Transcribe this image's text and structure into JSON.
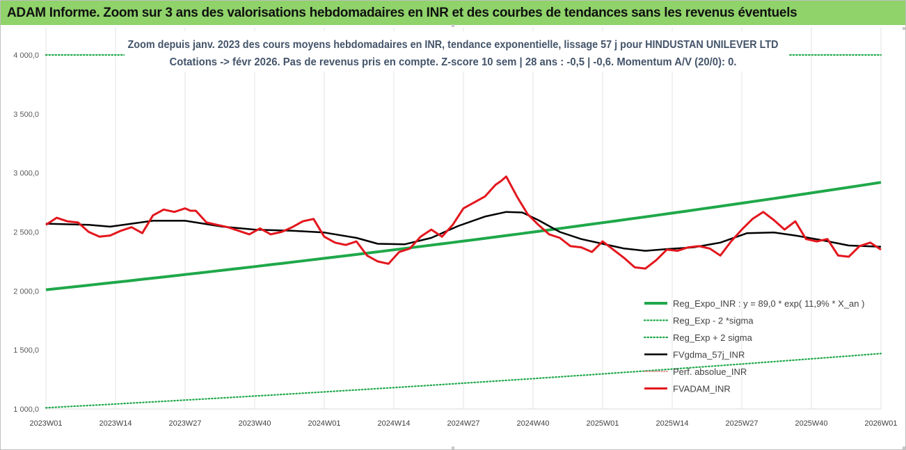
{
  "banner": {
    "title": "ADAM Informe. Zoom sur 3 ans des valorisations hebdomadaires en INR et des courbes de tendances sans les revenus éventuels"
  },
  "chart_data": {
    "type": "line",
    "title": "Zoom depuis janv. 2023 des cours moyens hebdomadaires en INR, tendance exponentielle, lissage 57 j pour HINDUSTAN UNILEVER LTD",
    "subtitle": "Cotations -> févr 2026.  Pas de revenus pris en compte. Z-score 10 sem | 28 ans : -0,5 | -0,6. Momentum A/V (20/0): 0.",
    "xlabel": "",
    "ylabel": "",
    "ylim": [
      1000,
      4000
    ],
    "y_ticks": [
      "1 000,0",
      "1 500,0",
      "2 000,0",
      "2 500,0",
      "3 000,0",
      "3 500,0",
      "4 000,0"
    ],
    "x_ticks": [
      "2023W01",
      "2023W14",
      "2023W27",
      "2023W40",
      "2024W01",
      "2024W14",
      "2024W27",
      "2024W40",
      "2025W01",
      "2025W14",
      "2025W27",
      "2025W40",
      "2026W01"
    ],
    "grid": "vertical",
    "legend_position": "right",
    "colors": {
      "reg_expo": "#1fa84a",
      "band": "#1fa84a",
      "perf": "#e07b7b",
      "fvgdma": "#000000",
      "fvadam": "#e3161d"
    },
    "series": [
      {
        "name": "Reg_Expo_INR : y = 89,0 * exp( 11,9% *  X_an )",
        "key": "reg_expo",
        "x": [
          0,
          156
        ],
        "values": [
          2010,
          2920
        ]
      },
      {
        "name": "Reg_Exp - 2 *sigma",
        "key": "minus2",
        "x": [
          0,
          156
        ],
        "values": [
          1010,
          1470
        ]
      },
      {
        "name": "Reg_Exp + 2 sigma",
        "key": "plus2",
        "x": [
          0,
          156
        ],
        "values": [
          4000,
          4000
        ]
      },
      {
        "name": "FVgdma_57j_INR",
        "key": "fvgdma",
        "x": [
          0,
          8,
          12,
          20,
          26,
          33,
          39,
          46,
          52,
          58,
          62,
          67,
          72,
          77,
          82,
          86,
          89,
          92,
          96,
          100,
          104,
          108,
          112,
          116,
          121,
          126,
          131,
          136,
          140,
          145,
          150,
          156
        ],
        "values": [
          2570,
          2560,
          2545,
          2595,
          2595,
          2545,
          2520,
          2510,
          2495,
          2450,
          2400,
          2395,
          2450,
          2550,
          2630,
          2670,
          2665,
          2600,
          2500,
          2440,
          2400,
          2360,
          2340,
          2355,
          2370,
          2410,
          2490,
          2495,
          2470,
          2430,
          2385,
          2375
        ]
      },
      {
        "name": "Perf. absolue_INR",
        "key": "perf",
        "x": [],
        "values": []
      },
      {
        "name": "FVADAM_INR",
        "key": "fvadam",
        "x": [
          0,
          2,
          4,
          6,
          8,
          10,
          12,
          14,
          16,
          18,
          20,
          22,
          24,
          26,
          27,
          28,
          30,
          32,
          34,
          36,
          38,
          40,
          42,
          44,
          46,
          48,
          50,
          52,
          54,
          56,
          58,
          60,
          62,
          64,
          66,
          68,
          70,
          72,
          74,
          76,
          78,
          80,
          82,
          83,
          84,
          85,
          86,
          88,
          90,
          92,
          94,
          96,
          98,
          100,
          102,
          104,
          106,
          108,
          110,
          112,
          114,
          116,
          118,
          120,
          122,
          124,
          126,
          128,
          130,
          132,
          134,
          136,
          138,
          140,
          142,
          144,
          146,
          148,
          150,
          152,
          154,
          156
        ],
        "values": [
          2560,
          2620,
          2590,
          2580,
          2500,
          2460,
          2470,
          2510,
          2540,
          2490,
          2640,
          2690,
          2670,
          2700,
          2680,
          2680,
          2580,
          2560,
          2540,
          2510,
          2480,
          2530,
          2480,
          2500,
          2540,
          2590,
          2610,
          2460,
          2410,
          2390,
          2420,
          2300,
          2250,
          2230,
          2330,
          2360,
          2460,
          2520,
          2460,
          2560,
          2700,
          2750,
          2800,
          2850,
          2900,
          2930,
          2970,
          2800,
          2650,
          2560,
          2480,
          2450,
          2380,
          2370,
          2330,
          2420,
          2350,
          2280,
          2200,
          2190,
          2260,
          2350,
          2340,
          2370,
          2380,
          2360,
          2300,
          2420,
          2520,
          2610,
          2670,
          2600,
          2520,
          2590,
          2440,
          2420,
          2440,
          2300,
          2290,
          2380,
          2410,
          2350
        ]
      }
    ]
  }
}
